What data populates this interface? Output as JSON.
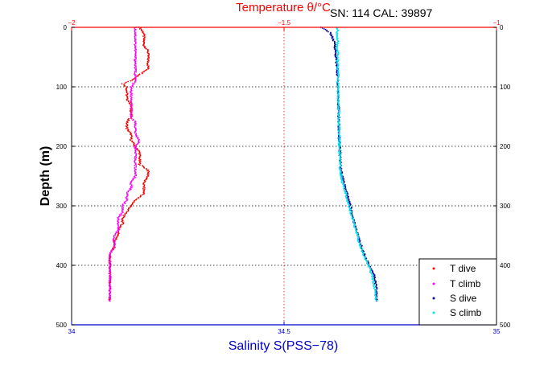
{
  "chart_data": {
    "type": "scatter",
    "header": "SN: 114  CAL: 39897",
    "top_axis": {
      "label": "Temperature θ/°C",
      "range": [
        -2,
        -1
      ],
      "ticks": [
        -2,
        -1.5,
        -1
      ],
      "tick_labels": [
        "−2",
        "−1.5",
        "−1"
      ],
      "color": "#ff0000"
    },
    "bottom_axis": {
      "label": "Salinity S(PSS−78)",
      "range": [
        34,
        35
      ],
      "ticks": [
        34,
        34.5,
        35
      ],
      "tick_labels": [
        "34",
        "34.5",
        "35"
      ],
      "color": "#0000cc"
    },
    "y_axis": {
      "label": "Depth (m)",
      "range": [
        0,
        500
      ],
      "reversed": true,
      "ticks": [
        0,
        100,
        200,
        300,
        400,
        500
      ],
      "tick_labels": [
        "0",
        "100",
        "200",
        "300",
        "400",
        "500"
      ]
    },
    "grid": true,
    "legend_position": "bottom-right",
    "series": [
      {
        "name": "T dive",
        "axis": "temperature",
        "color": "#ff0000",
        "points": [
          [
            0,
            -1.84
          ],
          [
            10,
            -1.83
          ],
          [
            20,
            -1.83
          ],
          [
            30,
            -1.83
          ],
          [
            40,
            -1.82
          ],
          [
            50,
            -1.82
          ],
          [
            60,
            -1.82
          ],
          [
            70,
            -1.82
          ],
          [
            80,
            -1.84
          ],
          [
            90,
            -1.86
          ],
          [
            95,
            -1.88
          ],
          [
            100,
            -1.87
          ],
          [
            110,
            -1.87
          ],
          [
            120,
            -1.87
          ],
          [
            130,
            -1.86
          ],
          [
            140,
            -1.86
          ],
          [
            150,
            -1.86
          ],
          [
            160,
            -1.87
          ],
          [
            170,
            -1.87
          ],
          [
            180,
            -1.86
          ],
          [
            190,
            -1.86
          ],
          [
            200,
            -1.85
          ],
          [
            210,
            -1.84
          ],
          [
            220,
            -1.84
          ],
          [
            230,
            -1.84
          ],
          [
            240,
            -1.82
          ],
          [
            250,
            -1.82
          ],
          [
            260,
            -1.83
          ],
          [
            270,
            -1.83
          ],
          [
            280,
            -1.83
          ],
          [
            290,
            -1.85
          ],
          [
            300,
            -1.86
          ],
          [
            310,
            -1.87
          ],
          [
            320,
            -1.88
          ],
          [
            330,
            -1.88
          ],
          [
            340,
            -1.89
          ],
          [
            350,
            -1.89
          ],
          [
            360,
            -1.9
          ],
          [
            370,
            -1.9
          ],
          [
            380,
            -1.91
          ],
          [
            390,
            -1.91
          ],
          [
            400,
            -1.91
          ],
          [
            410,
            -1.91
          ],
          [
            420,
            -1.91
          ],
          [
            430,
            -1.91
          ],
          [
            440,
            -1.91
          ],
          [
            450,
            -1.91
          ],
          [
            460,
            -1.91
          ]
        ]
      },
      {
        "name": "T climb",
        "axis": "temperature",
        "color": "#ff00ff",
        "points": [
          [
            0,
            -1.85
          ],
          [
            10,
            -1.85
          ],
          [
            20,
            -1.85
          ],
          [
            30,
            -1.85
          ],
          [
            40,
            -1.85
          ],
          [
            50,
            -1.85
          ],
          [
            60,
            -1.85
          ],
          [
            70,
            -1.85
          ],
          [
            80,
            -1.85
          ],
          [
            90,
            -1.85
          ],
          [
            100,
            -1.86
          ],
          [
            110,
            -1.86
          ],
          [
            120,
            -1.86
          ],
          [
            130,
            -1.86
          ],
          [
            140,
            -1.86
          ],
          [
            150,
            -1.86
          ],
          [
            160,
            -1.85
          ],
          [
            170,
            -1.85
          ],
          [
            180,
            -1.85
          ],
          [
            190,
            -1.84
          ],
          [
            200,
            -1.85
          ],
          [
            210,
            -1.85
          ],
          [
            220,
            -1.85
          ],
          [
            230,
            -1.85
          ],
          [
            240,
            -1.85
          ],
          [
            250,
            -1.85
          ],
          [
            260,
            -1.86
          ],
          [
            270,
            -1.86
          ],
          [
            280,
            -1.87
          ],
          [
            290,
            -1.87
          ],
          [
            300,
            -1.88
          ],
          [
            310,
            -1.88
          ],
          [
            320,
            -1.89
          ],
          [
            330,
            -1.89
          ],
          [
            340,
            -1.89
          ],
          [
            350,
            -1.9
          ],
          [
            360,
            -1.9
          ],
          [
            370,
            -1.9
          ],
          [
            380,
            -1.91
          ],
          [
            390,
            -1.91
          ],
          [
            400,
            -1.91
          ],
          [
            410,
            -1.91
          ],
          [
            420,
            -1.91
          ],
          [
            430,
            -1.91
          ],
          [
            440,
            -1.91
          ],
          [
            450,
            -1.91
          ],
          [
            460,
            -1.91
          ]
        ]
      },
      {
        "name": "S dive",
        "axis": "salinity",
        "color": "#000099",
        "points": [
          [
            0,
            34.585
          ],
          [
            5,
            34.6
          ],
          [
            10,
            34.61
          ],
          [
            20,
            34.615
          ],
          [
            30,
            34.62
          ],
          [
            50,
            34.622
          ],
          [
            70,
            34.625
          ],
          [
            100,
            34.627
          ],
          [
            130,
            34.628
          ],
          [
            160,
            34.629
          ],
          [
            190,
            34.63
          ],
          [
            220,
            34.632
          ],
          [
            240,
            34.634
          ],
          [
            260,
            34.64
          ],
          [
            280,
            34.648
          ],
          [
            300,
            34.656
          ],
          [
            320,
            34.662
          ],
          [
            340,
            34.67
          ],
          [
            360,
            34.678
          ],
          [
            380,
            34.688
          ],
          [
            400,
            34.7
          ],
          [
            420,
            34.714
          ],
          [
            440,
            34.717
          ],
          [
            460,
            34.718
          ]
        ]
      },
      {
        "name": "S climb",
        "axis": "salinity",
        "color": "#00e5ee",
        "points": [
          [
            0,
            34.625
          ],
          [
            20,
            34.625
          ],
          [
            40,
            34.626
          ],
          [
            60,
            34.626
          ],
          [
            80,
            34.627
          ],
          [
            100,
            34.627
          ],
          [
            130,
            34.628
          ],
          [
            160,
            34.629
          ],
          [
            190,
            34.63
          ],
          [
            220,
            34.631
          ],
          [
            240,
            34.632
          ],
          [
            260,
            34.637
          ],
          [
            280,
            34.645
          ],
          [
            300,
            34.653
          ],
          [
            320,
            34.66
          ],
          [
            340,
            34.668
          ],
          [
            360,
            34.676
          ],
          [
            380,
            34.686
          ],
          [
            400,
            34.698
          ],
          [
            420,
            34.708
          ],
          [
            440,
            34.714
          ],
          [
            460,
            34.717
          ]
        ]
      }
    ]
  }
}
